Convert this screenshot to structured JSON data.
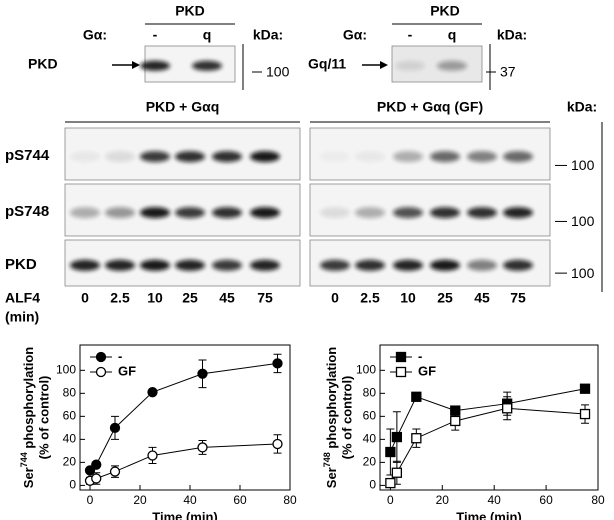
{
  "top_blots": [
    {
      "title": "PKD",
      "galpha_label": "Gα:",
      "lanes": [
        "-",
        "q"
      ],
      "kda_label": "kDa:",
      "row_label": "PKD",
      "marker": "100"
    },
    {
      "title": "PKD",
      "galpha_label": "Gα:",
      "lanes": [
        "-",
        "q"
      ],
      "kda_label": "kDa:",
      "row_label": "Gq/11",
      "marker": "37"
    }
  ],
  "main_blots": {
    "panels": [
      {
        "title": "PKD + Gαq",
        "times": [
          "0",
          "2.5",
          "10",
          "25",
          "45",
          "75"
        ]
      },
      {
        "title": "PKD + Gαq (GF)",
        "times": [
          "0",
          "2.5",
          "10",
          "25",
          "45",
          "75"
        ]
      }
    ],
    "kda_label": "kDa:",
    "rows": [
      "pS744",
      "pS748",
      "PKD"
    ],
    "markers": [
      "100",
      "100",
      "100"
    ],
    "treatment": "ALF4",
    "treatment_unit": "(min)"
  },
  "chart_data": [
    {
      "type": "line",
      "x_label": "Time (min)",
      "y_label": {
        "prefix": "Ser",
        "superscript": "744",
        "suffix": " phosphorylation",
        "line2": "(% of control)"
      },
      "xlim": [
        -4,
        80
      ],
      "ylim": [
        -4,
        122
      ],
      "xticks": [
        0,
        20,
        40,
        60,
        80
      ],
      "yticks": [
        0,
        20,
        40,
        60,
        80,
        100
      ],
      "legend": "upper left",
      "series": [
        {
          "name": "-",
          "color": "#000000",
          "marker": "circle",
          "filled": true,
          "x": [
            0,
            2.5,
            10,
            25,
            45,
            75
          ],
          "values": [
            13,
            18,
            50,
            81,
            97,
            106
          ],
          "errors": [
            2,
            2,
            10,
            2,
            12,
            8
          ]
        },
        {
          "name": "GF",
          "color": "#000000",
          "marker": "circle",
          "filled": false,
          "x": [
            0,
            2.5,
            10,
            25,
            45,
            75
          ],
          "values": [
            4,
            6,
            12,
            26,
            33,
            36
          ],
          "errors": [
            3,
            5,
            5,
            7,
            6,
            8
          ]
        }
      ]
    },
    {
      "type": "line",
      "x_label": "Time (min)",
      "y_label": {
        "prefix": "Ser",
        "superscript": "748",
        "suffix": " phosphorylation",
        "line2": "(% of control)"
      },
      "xlim": [
        -4,
        80
      ],
      "ylim": [
        -4,
        122
      ],
      "xticks": [
        0,
        20,
        40,
        60,
        80
      ],
      "yticks": [
        0,
        20,
        40,
        60,
        80,
        100
      ],
      "legend": "upper left",
      "series": [
        {
          "name": "-",
          "color": "#000000",
          "marker": "square",
          "filled": true,
          "x": [
            0,
            2.5,
            10,
            25,
            45,
            75
          ],
          "values": [
            29,
            42,
            77,
            65,
            71,
            84
          ],
          "errors": [
            20,
            22,
            3,
            4,
            10,
            2
          ]
        },
        {
          "name": "GF",
          "color": "#000000",
          "marker": "square",
          "filled": false,
          "x": [
            0,
            2.5,
            10,
            25,
            45,
            75
          ],
          "values": [
            2,
            11,
            41,
            56,
            67,
            62
          ],
          "errors": [
            3,
            10,
            8,
            8,
            10,
            8
          ]
        }
      ]
    }
  ]
}
